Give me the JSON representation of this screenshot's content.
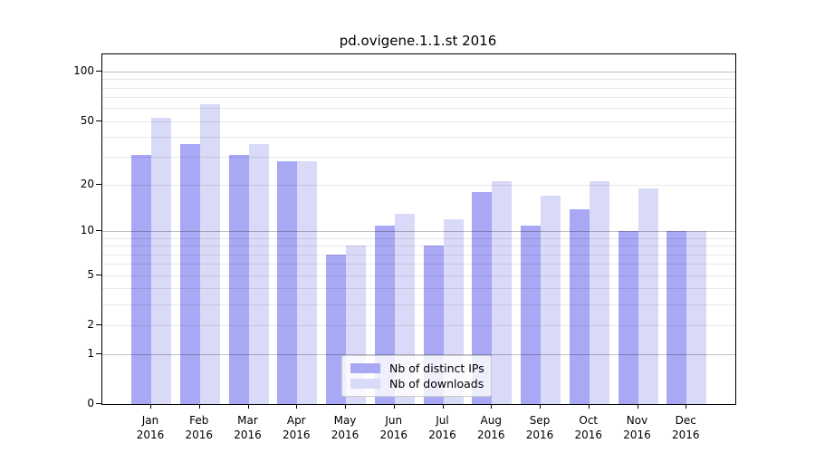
{
  "chart_data": {
    "type": "bar",
    "title": "pd.ovigene.1.1.st 2016",
    "year_label": "2016",
    "categories": [
      "Jan",
      "Feb",
      "Mar",
      "Apr",
      "May",
      "Jun",
      "Jul",
      "Aug",
      "Sep",
      "Oct",
      "Nov",
      "Dec"
    ],
    "series": [
      {
        "name": "Nb of distinct IPs",
        "color": "#a8a8f5",
        "values": [
          31,
          36,
          31,
          28,
          7,
          11,
          8,
          18,
          11,
          14,
          10,
          10
        ]
      },
      {
        "name": "Nb of downloads",
        "color": "#d9d9f8",
        "values": [
          52,
          63,
          36,
          28,
          8,
          13,
          12,
          21,
          17,
          21,
          19,
          10
        ]
      }
    ],
    "y_axis": {
      "scale": "log10(1+x)",
      "tick_labels": [
        0,
        1,
        2,
        5,
        10,
        20,
        50,
        100
      ],
      "major_gridlines": [
        1,
        10,
        100
      ],
      "minor_gridlines": [
        2,
        3,
        4,
        5,
        6,
        7,
        8,
        9,
        20,
        30,
        40,
        50,
        60,
        70,
        80,
        90
      ],
      "range": [
        0,
        129
      ],
      "grid": "on"
    },
    "x_axis": {
      "tick_label_line2": "2016"
    },
    "legend": {
      "position": "lower center",
      "entries": [
        "Nb of distinct IPs",
        "Nb of downloads"
      ]
    }
  }
}
